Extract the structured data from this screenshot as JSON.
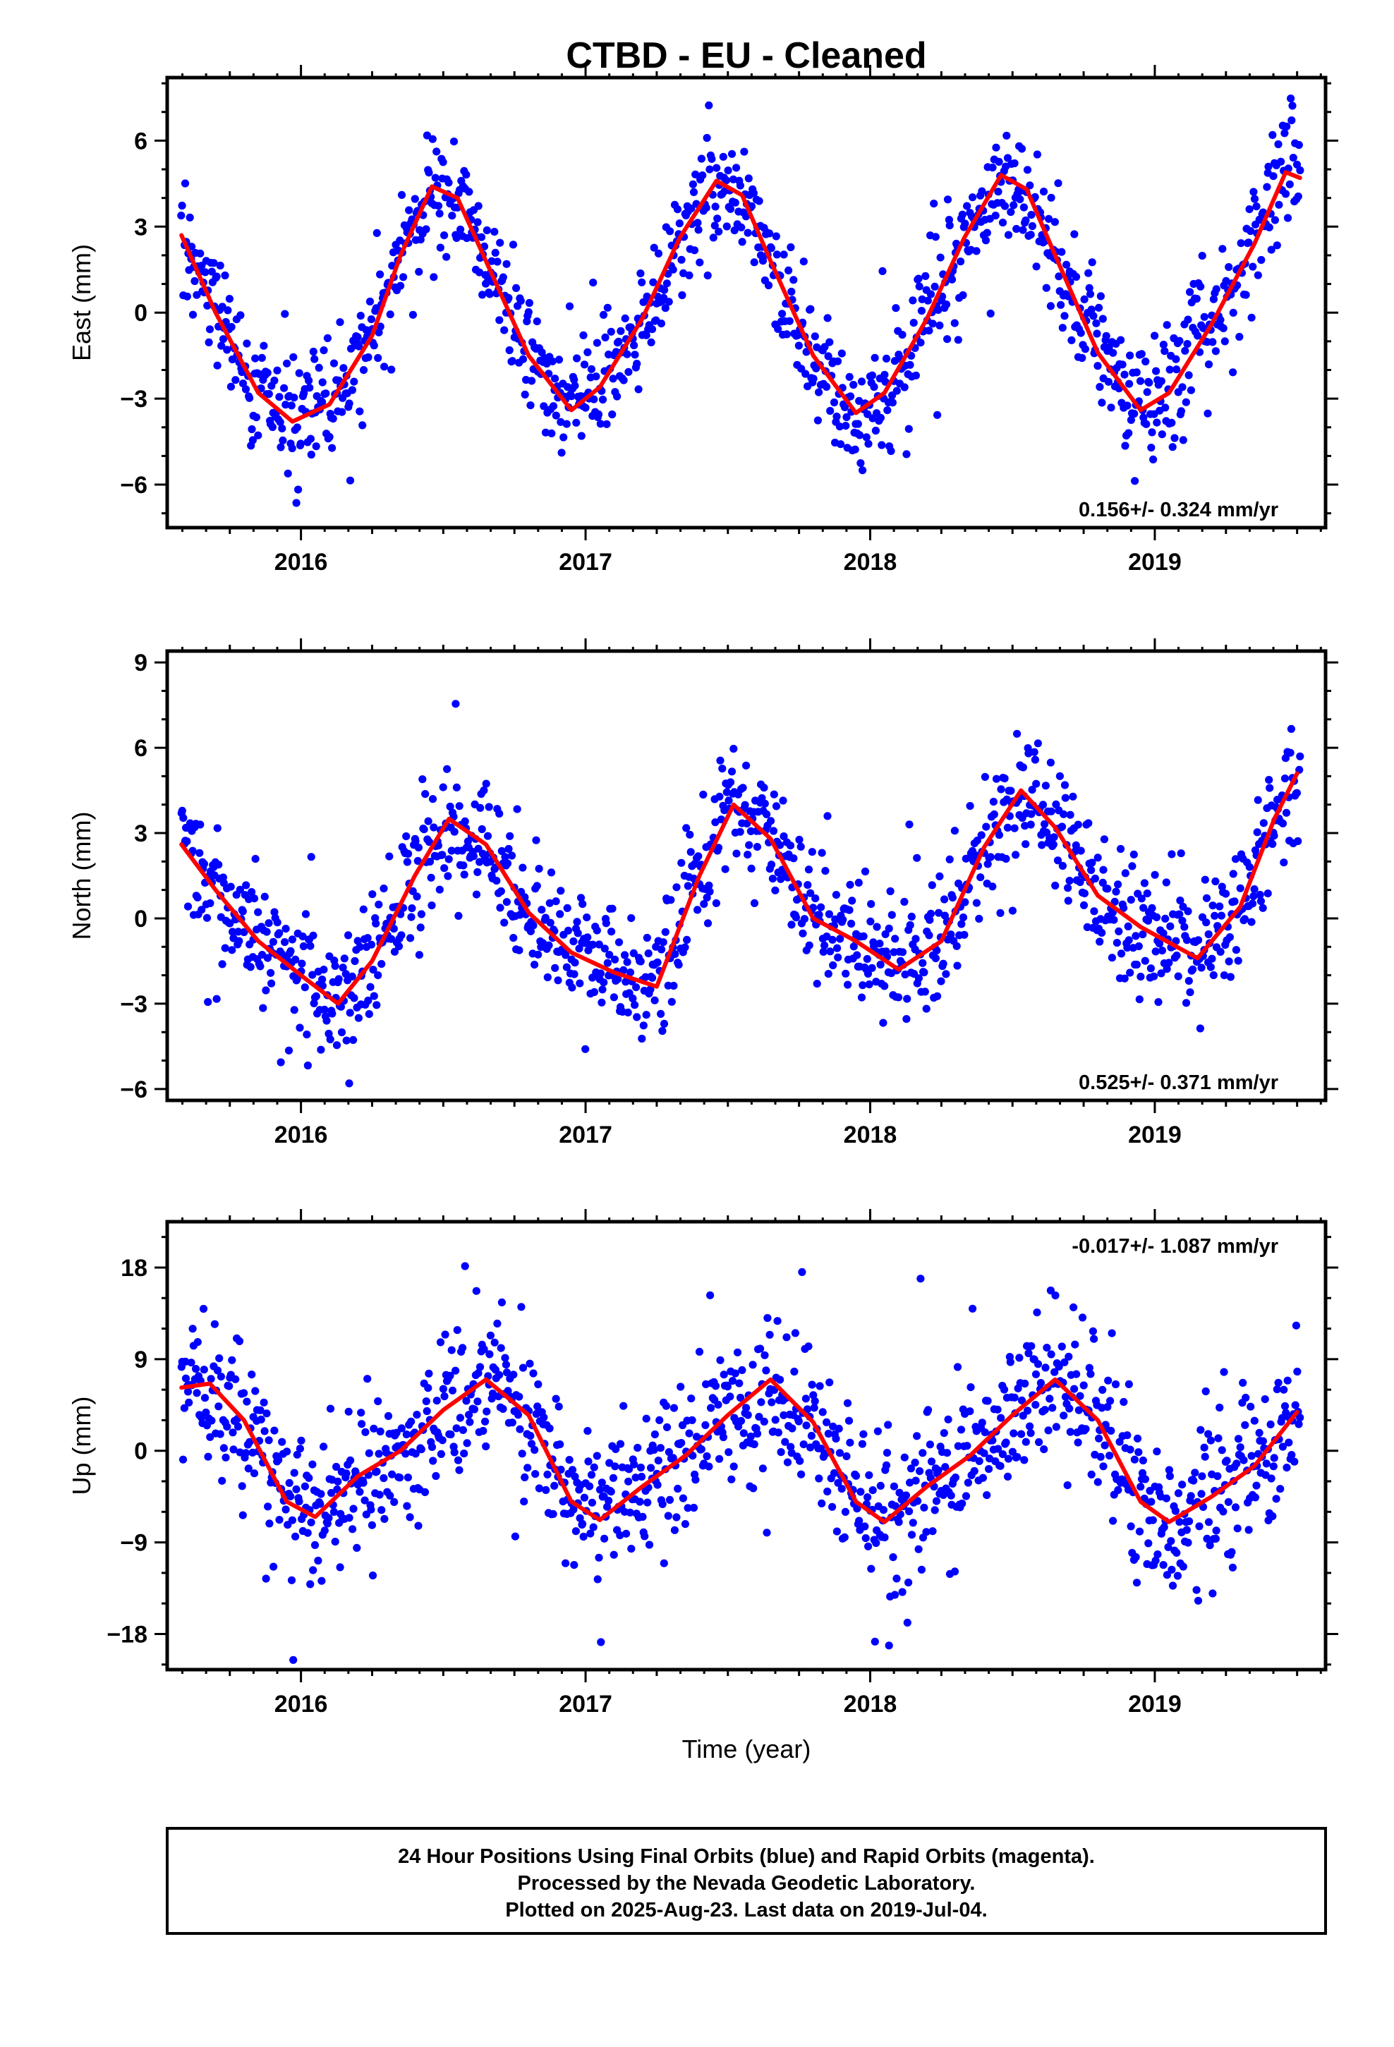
{
  "title": "CTBD  - EU - Cleaned",
  "xlabel": "Time (year)",
  "colors": {
    "final_orbits": "#0000ff",
    "rapid_orbits": "#ff00ff",
    "model_fit": "#ff0000"
  },
  "footnote": {
    "line1": "24 Hour Positions Using Final Orbits (blue) and Rapid Orbits (magenta).",
    "line2": "Processed by the Nevada Geodetic Laboratory.",
    "line3": "Plotted on 2025-Aug-23. Last data on 2019-Jul-04."
  },
  "chart_data": [
    {
      "type": "scatter",
      "ylabel": "East (mm)",
      "rate_label": "0.156+/- 0.324 mm/yr",
      "rate_position": "bottom-right",
      "xlim": [
        2015.53,
        2019.6
      ],
      "ylim": [
        -7.5,
        8.2
      ],
      "xticks": [
        "2016",
        "2017",
        "2018",
        "2019"
      ],
      "yticks": [
        "6",
        "3",
        "0",
        "−3",
        "−6"
      ],
      "ytick_values": [
        6,
        3,
        0,
        -3,
        -6
      ],
      "trend": {
        "rate": 0.156,
        "rate_sigma": 0.324
      },
      "series": [
        {
          "color": "#0000ff",
          "x_range": [
            2015.58,
            2019.51
          ],
          "n_points": 1180,
          "noise_sd": 1.0,
          "outlier_spread": 2.2,
          "marker": "circle"
        },
        {
          "color": "#ff0000",
          "line_x": [
            2015.58,
            2015.7,
            2015.85,
            2015.97,
            2016.1,
            2016.25,
            2016.35,
            2016.46,
            2016.55,
            2016.65,
            2016.8,
            2016.95,
            2017.05,
            2017.2,
            2017.33,
            2017.46,
            2017.55,
            2017.65,
            2017.8,
            2017.95,
            2018.05,
            2018.2,
            2018.33,
            2018.46,
            2018.55,
            2018.65,
            2018.8,
            2018.95,
            2019.05,
            2019.2,
            2019.35,
            2019.46,
            2019.51
          ],
          "line_y": [
            2.7,
            0.0,
            -2.8,
            -3.8,
            -3.2,
            -0.8,
            2.0,
            4.4,
            4.0,
            1.8,
            -1.5,
            -3.4,
            -2.6,
            -0.2,
            2.6,
            4.6,
            4.1,
            1.8,
            -1.5,
            -3.5,
            -2.8,
            -0.2,
            2.6,
            4.8,
            4.3,
            2.0,
            -1.4,
            -3.4,
            -2.8,
            -0.4,
            2.4,
            4.9,
            4.7
          ]
        }
      ]
    },
    {
      "type": "scatter",
      "ylabel": "North (mm)",
      "rate_label": "0.525+/- 0.371 mm/yr",
      "rate_position": "bottom-right",
      "xlim": [
        2015.53,
        2019.6
      ],
      "ylim": [
        -6.4,
        9.4
      ],
      "xticks": [
        "2016",
        "2017",
        "2018",
        "2019"
      ],
      "yticks": [
        "9",
        "6",
        "3",
        "0",
        "−3",
        "−6"
      ],
      "ytick_values": [
        9,
        6,
        3,
        0,
        -3,
        -6
      ],
      "trend": {
        "rate": 0.525,
        "rate_sigma": 0.371
      },
      "series": [
        {
          "color": "#0000ff",
          "x_range": [
            2015.58,
            2019.51
          ],
          "n_points": 1180,
          "noise_sd": 1.1,
          "outlier_spread": 2.4,
          "marker": "circle"
        },
        {
          "color": "#ff0000",
          "line_x": [
            2015.58,
            2015.7,
            2015.85,
            2016.0,
            2016.13,
            2016.25,
            2016.4,
            2016.52,
            2016.65,
            2016.8,
            2016.95,
            2017.1,
            2017.25,
            2017.4,
            2017.52,
            2017.65,
            2017.8,
            2017.95,
            2018.1,
            2018.25,
            2018.4,
            2018.53,
            2018.65,
            2018.8,
            2018.95,
            2019.15,
            2019.3,
            2019.42,
            2019.5
          ],
          "line_y": [
            2.6,
            1.0,
            -0.8,
            -2.0,
            -3.0,
            -1.5,
            1.5,
            3.5,
            2.6,
            0.2,
            -1.2,
            -1.9,
            -2.4,
            1.5,
            4.0,
            2.8,
            0.0,
            -0.8,
            -1.8,
            -0.8,
            2.5,
            4.5,
            3.2,
            0.8,
            -0.3,
            -1.4,
            0.4,
            3.5,
            5.1
          ]
        }
      ]
    },
    {
      "type": "scatter",
      "ylabel": "Up (mm)",
      "rate_label": "-0.017+/- 1.087 mm/yr",
      "rate_position": "top-right",
      "xlim": [
        2015.53,
        2019.6
      ],
      "ylim": [
        -21.5,
        22.5
      ],
      "xticks": [
        "2016",
        "2017",
        "2018",
        "2019"
      ],
      "yticks": [
        "18",
        "9",
        "0",
        "−9",
        "−18"
      ],
      "ytick_values": [
        18,
        9,
        0,
        -9,
        -18
      ],
      "trend": {
        "rate": -0.017,
        "rate_sigma": 1.087
      },
      "series": [
        {
          "color": "#0000ff",
          "x_range": [
            2015.58,
            2019.51
          ],
          "n_points": 1180,
          "noise_sd": 3.6,
          "outlier_spread": 7.0,
          "marker": "circle"
        },
        {
          "color": "#ff0000",
          "line_x": [
            2015.58,
            2015.68,
            2015.8,
            2015.95,
            2016.05,
            2016.2,
            2016.35,
            2016.5,
            2016.65,
            2016.8,
            2016.95,
            2017.05,
            2017.2,
            2017.35,
            2017.5,
            2017.65,
            2017.8,
            2017.95,
            2018.05,
            2018.2,
            2018.35,
            2018.5,
            2018.65,
            2018.8,
            2018.95,
            2019.05,
            2019.2,
            2019.35,
            2019.5
          ],
          "line_y": [
            6.2,
            6.6,
            3.0,
            -5.0,
            -6.5,
            -2.5,
            0.0,
            4.0,
            7.0,
            3.5,
            -5.0,
            -6.8,
            -3.5,
            -0.5,
            3.5,
            7.0,
            2.8,
            -5.0,
            -7.0,
            -3.5,
            -0.5,
            3.5,
            7.0,
            3.0,
            -5.0,
            -7.0,
            -4.5,
            -1.5,
            3.8
          ]
        }
      ]
    }
  ]
}
